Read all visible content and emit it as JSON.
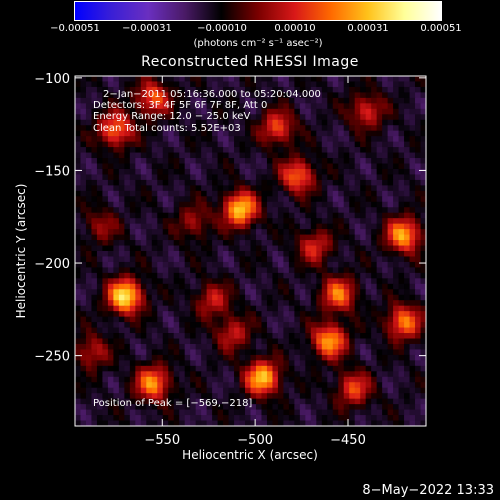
{
  "chart_data": {
    "type": "heatmap",
    "title": "Reconstructed RHESSI Image",
    "xlabel": "Heliocentric X (arcsec)",
    "ylabel": "Heliocentric Y (arcsec)",
    "xlim": [
      -597,
      -408
    ],
    "ylim": [
      -288,
      -99
    ],
    "x_ticks": [
      {
        "value": -550,
        "label": "−550"
      },
      {
        "value": -500,
        "label": "−500"
      },
      {
        "value": -450,
        "label": "−450"
      }
    ],
    "y_ticks": [
      {
        "value": -100,
        "label": "−100"
      },
      {
        "value": -150,
        "label": "−150"
      },
      {
        "value": -200,
        "label": "−200"
      },
      {
        "value": -250,
        "label": "−250"
      }
    ],
    "colorbar": {
      "range": [
        -0.00051,
        0.00051
      ],
      "ticks": [
        {
          "value": -0.00051,
          "label": "−0.00051"
        },
        {
          "value": -0.00031,
          "label": "−0.00031"
        },
        {
          "value": -0.0001,
          "label": "−0.00010"
        },
        {
          "value": 0.0001,
          "label": "0.00010"
        },
        {
          "value": 0.00031,
          "label": "0.00031"
        },
        {
          "value": 0.00051,
          "label": "0.00051"
        }
      ],
      "units": "(photons cm⁻² s⁻¹ asec⁻²)",
      "colors": [
        "#0000ff",
        "#3a1fd6",
        "#6a2fc0",
        "#4a1a66",
        "#000000",
        "#7a0000",
        "#d81818",
        "#ff6a00",
        "#ffc21a",
        "#ffff99",
        "#ffffff"
      ]
    },
    "annotations": [
      "2−Jan−2011 05:16:36.000 to 05:20:04.000",
      "Detectors: 3F 4F 5F 6F 7F 8F, Att 0",
      "Energy Range: 12.0 − 25.0 keV",
      "Clean    Total counts: 5.52E+03"
    ],
    "peak_label": "Position of Peak = [−569,−218]",
    "peak_position": [
      -569,
      -218
    ],
    "sources": [
      {
        "x": -570,
        "y": -218,
        "intensity": 0.00051
      },
      {
        "x": -508,
        "y": -171,
        "intensity": 0.00046
      },
      {
        "x": -555,
        "y": -265,
        "intensity": 0.00038
      },
      {
        "x": -496,
        "y": -262,
        "intensity": 0.00045
      },
      {
        "x": -460,
        "y": -242,
        "intensity": 0.0004
      },
      {
        "x": -455,
        "y": -217,
        "intensity": 0.00034
      },
      {
        "x": -420,
        "y": -185,
        "intensity": 0.00041
      },
      {
        "x": -575,
        "y": -128,
        "intensity": 0.00035
      },
      {
        "x": -555,
        "y": -111,
        "intensity": 0.00031
      },
      {
        "x": -488,
        "y": -127,
        "intensity": 0.00029
      },
      {
        "x": -477,
        "y": -153,
        "intensity": 0.00033
      },
      {
        "x": -440,
        "y": -118,
        "intensity": 0.00025
      },
      {
        "x": -420,
        "y": -232,
        "intensity": 0.00036
      },
      {
        "x": -523,
        "y": -220,
        "intensity": 0.00022
      },
      {
        "x": -447,
        "y": -268,
        "intensity": 0.00028
      },
      {
        "x": -583,
        "y": -180,
        "intensity": 0.00016
      },
      {
        "x": -533,
        "y": -178,
        "intensity": 0.00018
      },
      {
        "x": -588,
        "y": -248,
        "intensity": 0.00021
      },
      {
        "x": -468,
        "y": -191,
        "intensity": 0.00024
      },
      {
        "x": -512,
        "y": -238,
        "intensity": 0.00022
      }
    ]
  },
  "footer": {
    "date": "8−May−2022 13:33"
  }
}
